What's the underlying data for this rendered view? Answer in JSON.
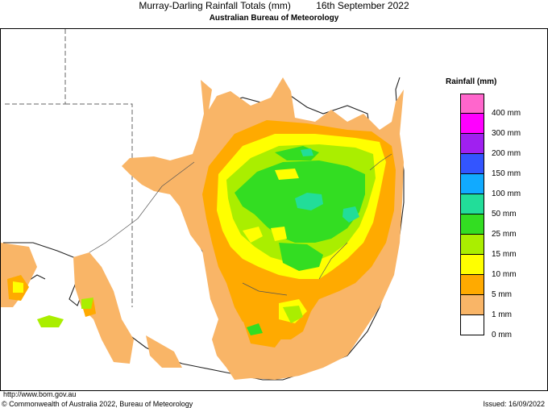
{
  "header": {
    "title": "Murray-Darling Rainfall Totals (mm)",
    "date": "16th September 2022",
    "agency": "Australian Bureau of Meteorology"
  },
  "legend": {
    "title": "Rainfall (mm)",
    "items": [
      {
        "label": "400 mm",
        "color": "#ff66cc"
      },
      {
        "label": "300 mm",
        "color": "#ff00ff"
      },
      {
        "label": "200 mm",
        "color": "#a020f0"
      },
      {
        "label": "150 mm",
        "color": "#3355ff"
      },
      {
        "label": "100 mm",
        "color": "#11aaff"
      },
      {
        "label": "50 mm",
        "color": "#22dd99"
      },
      {
        "label": "25 mm",
        "color": "#33dd22"
      },
      {
        "label": "15 mm",
        "color": "#aaee00"
      },
      {
        "label": "10 mm",
        "color": "#ffff00"
      },
      {
        "label": "5 mm",
        "color": "#ffaa00"
      },
      {
        "label": "1 mm",
        "color": "#f9b567"
      },
      {
        "label": "0 mm",
        "color": "#ffffff"
      }
    ]
  },
  "footer": {
    "url": "http://www.bom.gov.au",
    "copyright": "© Commonwealth of Australia 2022, Bureau of Meteorology",
    "issued": "Issued: 16/09/2022"
  }
}
